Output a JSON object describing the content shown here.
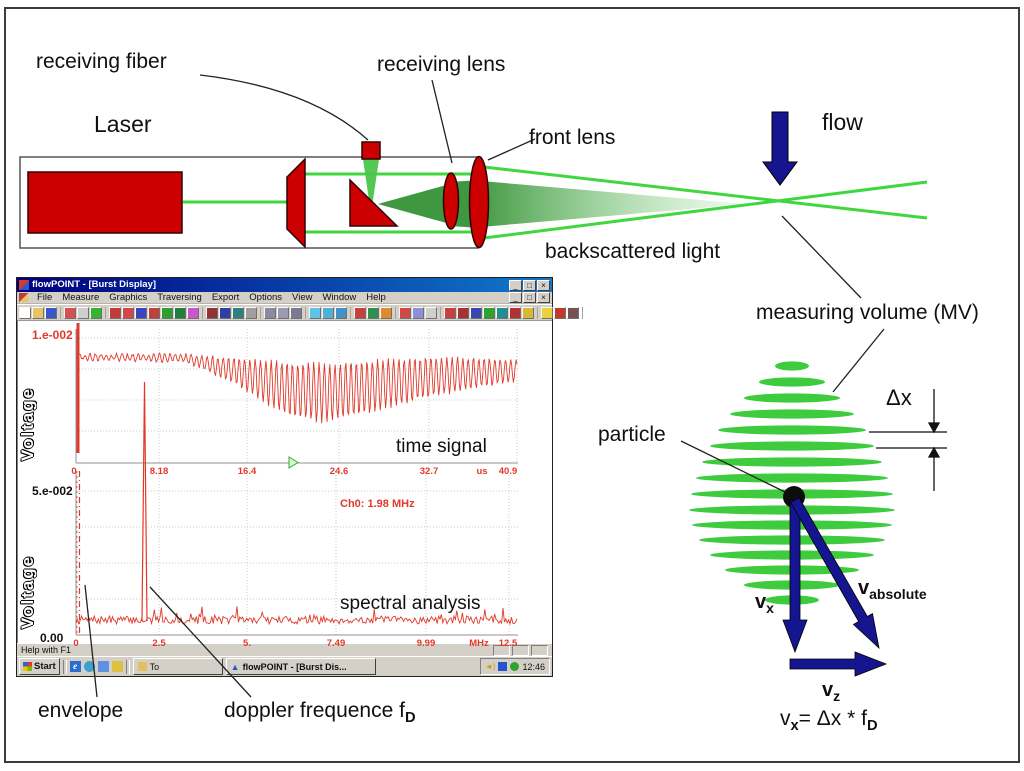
{
  "labels": {
    "receiving_fiber": "receiving fiber",
    "receiving_lens": "receiving lens",
    "front_lens": "front lens",
    "laser": "Laser",
    "flow": "flow",
    "backscattered_light": "backscattered light",
    "measuring_volume": "measuring volume (MV)",
    "particle": "particle",
    "delta_x": "Δx",
    "envelope": "envelope",
    "doppler_frequency": {
      "text": "doppler frequence f",
      "sub": "D"
    },
    "v_x": {
      "base": "v",
      "sub": "x"
    },
    "v_absolute": {
      "base": "v",
      "sub": "absolute"
    },
    "v_z": {
      "base": "v",
      "sub": "z"
    },
    "formula": {
      "p1": "v",
      "s1": "x",
      "p2": "= Δx * f",
      "s2": "D"
    }
  },
  "colors": {
    "beam_green": "#35d435",
    "cone_green": "#2f8f2f",
    "fringe_green": "#3ecc3e",
    "laser_red": "#cc0000",
    "vector_navy": "#15158f",
    "plot_red": "#e0392b",
    "titlebar_left": "#00007e",
    "titlebar_right": "#1078cc",
    "chrome_gray": "#d4d0c8"
  },
  "window": {
    "title": "flowPOINT - [Burst Display]",
    "controls": [
      "_",
      "□",
      "×"
    ],
    "menus": [
      "File",
      "Measure",
      "Graphics",
      "Traversing",
      "Export",
      "Options",
      "View",
      "Window",
      "Help"
    ],
    "toolbar_icon_groups": [
      [
        "#ffffff",
        "#e7c46a",
        "#3a57c9"
      ],
      [
        "#d94f4f",
        "#cfcfcf",
        "#35b335"
      ],
      [
        "#c23a3a",
        "#d04848",
        "#3a46c0",
        "#c04040",
        "#2f9e2f",
        "#1f7f3f",
        "#c957c9"
      ],
      [
        "#8f3434",
        "#2f3f9f",
        "#2f7f7f",
        "#9f9f9f"
      ],
      [
        "#8a8aa0",
        "#9a9ab0",
        "#7a7a90"
      ],
      [
        "#5fc3e7",
        "#4fb0d8",
        "#3f93c7"
      ],
      [
        "#c74040",
        "#2f8f4f",
        "#e08a2f"
      ],
      [
        "#d04848",
        "#8f8fd8",
        "#cfcfcf"
      ],
      [
        "#c74040",
        "#a83232",
        "#3946b0",
        "#2fa32f",
        "#1f8f8f",
        "#b03232",
        "#d8b832"
      ],
      [
        "#e8d23f",
        "#c0392b",
        "#7a4f4f"
      ]
    ],
    "plot1": {
      "ylabel": "Voltage",
      "ymax": "1.e-002",
      "xticks": [
        "0",
        "8.18",
        "16.4",
        "24.6",
        "32.7",
        "us",
        "40.9"
      ],
      "caption": "time signal"
    },
    "plot2": {
      "ylabel": "Voltage",
      "ymax": "5.e-002",
      "ymin": "0.00",
      "xticks": [
        "0",
        "2.5",
        "5.",
        "7.49",
        "9.99",
        "MHz",
        "12.5"
      ],
      "caption": "spectral analysis",
      "annotation": "Ch0: 1.98 MHz"
    },
    "statusbar": "Help with F1"
  },
  "taskbar": {
    "start": "Start",
    "task1": "To",
    "task2": "flowPOINT - [Burst Dis...",
    "time": "12:46"
  },
  "chart_data": [
    {
      "type": "line",
      "title": "time signal",
      "ylabel": "Voltage",
      "y_max_label": "1.e-002",
      "x_unit": "us",
      "xticks": [
        0,
        8.18,
        16.4,
        24.6,
        32.7,
        40.9
      ],
      "xlim": [
        0,
        40.9
      ],
      "grid": true,
      "description": "red Doppler burst: flat noisy level that develops deep high-frequency oscillations between ~12 and 41 us"
    },
    {
      "type": "line",
      "title": "spectral analysis",
      "ylabel": "Voltage",
      "y_max_label": "5.e-002",
      "y_min_label": "0.00",
      "x_unit": "MHz",
      "xticks": [
        0,
        2.5,
        5.0,
        7.49,
        9.99,
        12.5
      ],
      "xlim": [
        0,
        12.5
      ],
      "grid": true,
      "peak_frequency_mhz": 1.98,
      "annotation": "Ch0: 1.98 MHz",
      "description": "flat red noise floor with a single dominant spectral peak at 1.98 MHz and low-frequency envelope content near 0 MHz"
    }
  ]
}
